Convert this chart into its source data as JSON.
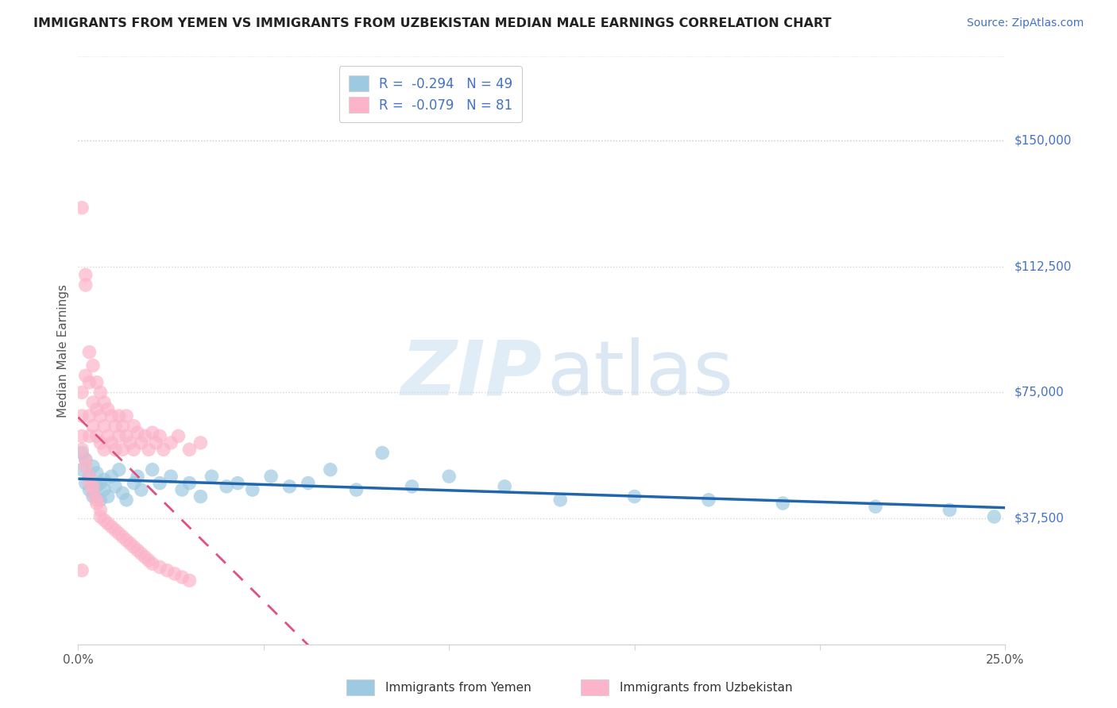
{
  "title": "IMMIGRANTS FROM YEMEN VS IMMIGRANTS FROM UZBEKISTAN MEDIAN MALE EARNINGS CORRELATION CHART",
  "source": "Source: ZipAtlas.com",
  "ylabel": "Median Male Earnings",
  "xlim": [
    0.0,
    0.25
  ],
  "ylim": [
    0,
    175000
  ],
  "ytick_vals": [
    37500,
    75000,
    112500,
    150000
  ],
  "ytick_labels": [
    "$37,500",
    "$75,000",
    "$112,500",
    "$150,000"
  ],
  "xtick_positions": [
    0.0,
    0.05,
    0.1,
    0.15,
    0.2,
    0.25
  ],
  "xtick_labels": [
    "0.0%",
    "",
    "",
    "",
    "",
    "25.0%"
  ],
  "legend_line1": "R =  -0.294   N = 49",
  "legend_line2": "R =  -0.079   N = 81",
  "blue_scatter": "#9ecae1",
  "pink_scatter": "#fbb4c9",
  "blue_line": "#2166ac",
  "pink_line": "#e05080",
  "grid_color": "#d5d5d5",
  "background": "#ffffff",
  "title_color": "#222222",
  "source_color": "#4472c4",
  "ylabel_color": "#555555",
  "ytick_color": "#4472c4",
  "legend_text_color": "#4472c4",
  "legend_r_color": "#333333",
  "watermark_zip_color": "#c8dff0",
  "watermark_atlas_color": "#b0cce8",
  "yemen_x": [
    0.001,
    0.001,
    0.002,
    0.002,
    0.003,
    0.003,
    0.004,
    0.004,
    0.005,
    0.005,
    0.006,
    0.006,
    0.007,
    0.007,
    0.008,
    0.009,
    0.01,
    0.011,
    0.012,
    0.013,
    0.015,
    0.016,
    0.017,
    0.02,
    0.022,
    0.025,
    0.028,
    0.03,
    0.033,
    0.036,
    0.04,
    0.043,
    0.047,
    0.052,
    0.057,
    0.062,
    0.068,
    0.075,
    0.082,
    0.09,
    0.1,
    0.115,
    0.13,
    0.15,
    0.17,
    0.19,
    0.215,
    0.235,
    0.247
  ],
  "yemen_y": [
    57000,
    52000,
    55000,
    48000,
    50000,
    46000,
    53000,
    44000,
    51000,
    47000,
    48000,
    43000,
    46000,
    49000,
    44000,
    50000,
    47000,
    52000,
    45000,
    43000,
    48000,
    50000,
    46000,
    52000,
    48000,
    50000,
    46000,
    48000,
    44000,
    50000,
    47000,
    48000,
    46000,
    50000,
    47000,
    48000,
    52000,
    46000,
    57000,
    47000,
    50000,
    47000,
    43000,
    44000,
    43000,
    42000,
    41000,
    40000,
    38000
  ],
  "uzbek_x": [
    0.001,
    0.001,
    0.001,
    0.001,
    0.002,
    0.002,
    0.002,
    0.003,
    0.003,
    0.003,
    0.003,
    0.004,
    0.004,
    0.004,
    0.005,
    0.005,
    0.005,
    0.006,
    0.006,
    0.006,
    0.007,
    0.007,
    0.007,
    0.008,
    0.008,
    0.009,
    0.009,
    0.01,
    0.01,
    0.011,
    0.011,
    0.012,
    0.012,
    0.013,
    0.013,
    0.014,
    0.015,
    0.015,
    0.016,
    0.017,
    0.018,
    0.019,
    0.02,
    0.021,
    0.022,
    0.023,
    0.025,
    0.027,
    0.03,
    0.033,
    0.001,
    0.002,
    0.002,
    0.003,
    0.003,
    0.004,
    0.004,
    0.005,
    0.005,
    0.006,
    0.006,
    0.007,
    0.008,
    0.009,
    0.01,
    0.011,
    0.012,
    0.013,
    0.014,
    0.015,
    0.016,
    0.017,
    0.018,
    0.019,
    0.02,
    0.022,
    0.024,
    0.026,
    0.028,
    0.03,
    0.001
  ],
  "uzbek_y": [
    130000,
    75000,
    68000,
    62000,
    110000,
    107000,
    80000,
    87000,
    78000,
    68000,
    62000,
    83000,
    72000,
    65000,
    78000,
    70000,
    62000,
    75000,
    68000,
    60000,
    72000,
    65000,
    58000,
    70000,
    62000,
    68000,
    60000,
    65000,
    58000,
    68000,
    62000,
    65000,
    58000,
    68000,
    62000,
    60000,
    65000,
    58000,
    63000,
    60000,
    62000,
    58000,
    63000,
    60000,
    62000,
    58000,
    60000,
    62000,
    58000,
    60000,
    58000,
    55000,
    53000,
    50000,
    48000,
    47000,
    45000,
    43000,
    42000,
    40000,
    38000,
    37000,
    36000,
    35000,
    34000,
    33000,
    32000,
    31000,
    30000,
    29000,
    28000,
    27000,
    26000,
    25000,
    24000,
    23000,
    22000,
    21000,
    20000,
    19000,
    22000
  ]
}
